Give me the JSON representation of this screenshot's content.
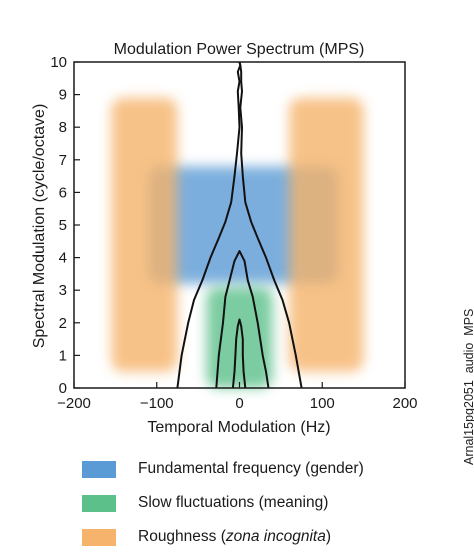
{
  "chart_data": {
    "type": "area",
    "title": "Modulation Power Spectrum (MPS)",
    "xlabel": "Temporal Modulation (Hz)",
    "ylabel": "Spectral Modulation (cycle/octave)",
    "xlim": [
      -200,
      200
    ],
    "ylim": [
      0,
      10
    ],
    "xticks": [
      -200,
      -100,
      0,
      100,
      200
    ],
    "yticks": [
      0,
      1,
      2,
      3,
      4,
      5,
      6,
      7,
      8,
      9,
      10
    ],
    "grid": false,
    "legend_position": "bottom",
    "regions": [
      {
        "name": "Fundamental frequency (gender)",
        "color": "#5b9bd5",
        "x_range": [
          -110,
          120
        ],
        "y_range": [
          3.2,
          6.8
        ]
      },
      {
        "name": "Slow fluctuations (meaning)",
        "color": "#5cc08a",
        "x_range": [
          -40,
          40
        ],
        "y_range": [
          0,
          3.1
        ]
      },
      {
        "name": "Roughness (zona incognita)",
        "color": "#f5b36b",
        "x_range": [
          -155,
          -75
        ],
        "y_range": [
          0.5,
          8.9
        ]
      },
      {
        "name": "Roughness (zona incognita)",
        "color": "#f5b36b",
        "x_range": [
          60,
          150
        ],
        "y_range": [
          0.5,
          8.9
        ]
      }
    ],
    "contours": [
      {
        "x": [
          -75,
          -70,
          -62,
          -55,
          -45,
          -35,
          -25,
          -17,
          -10,
          -6,
          -3,
          0,
          -1,
          -2,
          0,
          -2,
          1,
          0
        ],
        "y": [
          0,
          1,
          2,
          2.7,
          3.3,
          4,
          4.6,
          5.1,
          5.7,
          6.5,
          7.2,
          8,
          8.6,
          9.1,
          9.4,
          9.7,
          9.9,
          10
        ]
      },
      {
        "x": [
          75,
          68,
          60,
          52,
          42,
          32,
          22,
          14,
          7,
          4,
          2,
          3,
          1,
          3,
          2,
          2,
          1,
          0
        ],
        "y": [
          0,
          1,
          2,
          2.7,
          3.3,
          4,
          4.6,
          5.1,
          5.7,
          6.5,
          7.2,
          8,
          8.6,
          9.1,
          9.4,
          9.7,
          9.9,
          10
        ]
      },
      {
        "x": [
          -28,
          -25,
          -20,
          -17,
          -12,
          -6,
          0,
          6,
          10,
          16,
          22,
          28,
          32,
          35
        ],
        "y": [
          0,
          1,
          2,
          2.8,
          3.3,
          3.9,
          4.2,
          3.9,
          3.3,
          2.8,
          2,
          1,
          0.5,
          0
        ]
      },
      {
        "x": [
          -8,
          -6,
          -5,
          -4,
          -2,
          0,
          2,
          4,
          4,
          5,
          7
        ],
        "y": [
          0,
          0.5,
          1,
          1.5,
          1.9,
          2.1,
          1.9,
          1.5,
          1,
          0.5,
          0
        ]
      }
    ],
    "legend": [
      {
        "label": "Fundamental frequency (gender)",
        "color": "#5b9bd5"
      },
      {
        "label": "Slow fluctuations (meaning)",
        "color": "#5cc08a"
      },
      {
        "label_prefix": "Roughness (",
        "label_italic": "zona incognita",
        "label_suffix": ")",
        "color": "#f5b36b"
      }
    ]
  },
  "side_label": "Arnal15pg2051_audio_MPS"
}
